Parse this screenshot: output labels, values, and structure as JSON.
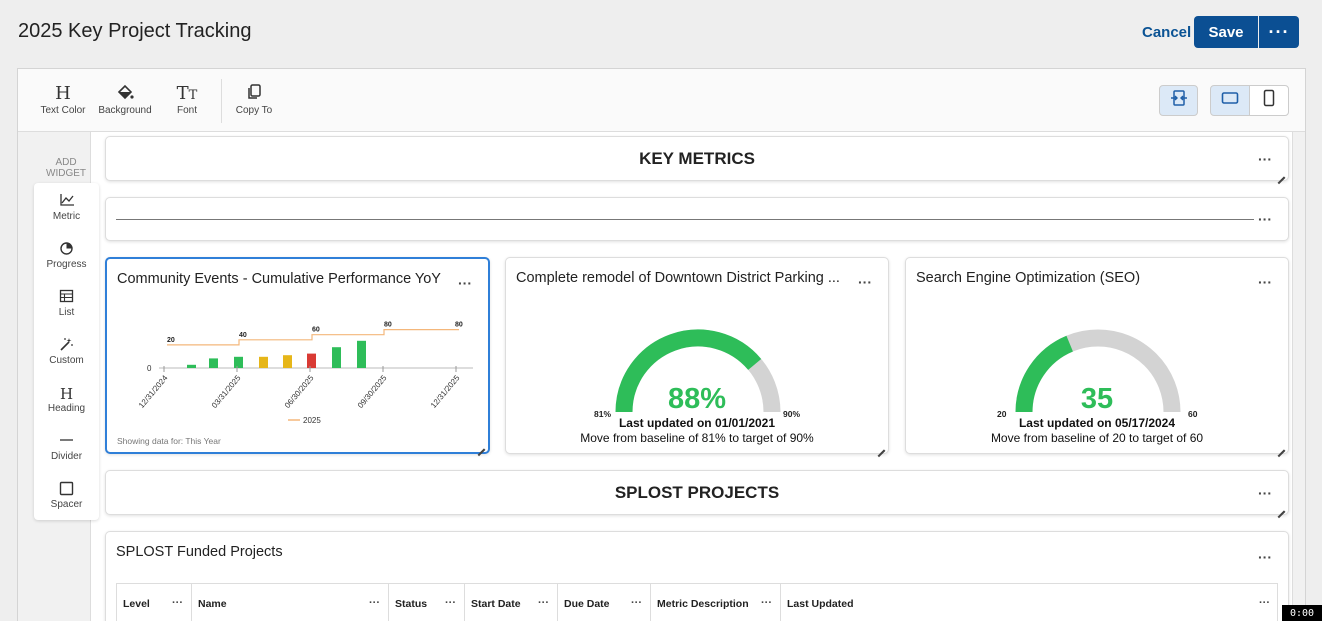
{
  "header": {
    "title": "2025 Key Project Tracking",
    "cancel_label": "Cancel",
    "save_label": "Save",
    "more_label": "···"
  },
  "toolbar": {
    "text_color": "Text Color",
    "background": "Background",
    "font": "Font",
    "copy_to": "Copy To"
  },
  "sidebar": {
    "title_line1": "ADD",
    "title_line2": "WIDGET",
    "items": [
      {
        "label": "Metric",
        "icon": "line-chart-icon"
      },
      {
        "label": "Progress",
        "icon": "pie-chart-icon"
      },
      {
        "label": "List",
        "icon": "table-icon"
      },
      {
        "label": "Custom",
        "icon": "magic-wand-icon"
      },
      {
        "label": "Heading",
        "icon": "heading-icon"
      },
      {
        "label": "Divider",
        "icon": "divider-icon"
      },
      {
        "label": "Spacer",
        "icon": "square-icon"
      }
    ]
  },
  "widgets": {
    "key_metrics_heading": "KEY METRICS",
    "splost_heading": "SPLOST PROJECTS",
    "community": {
      "title": "Community Events - Cumulative Performance YoY",
      "footer": "Showing data for: This Year"
    },
    "parking": {
      "title": "Complete remodel of Downtown District Parking ...",
      "value": "88%",
      "updated": "Last updated on 01/01/2021",
      "desc": "Move from baseline of 81% to target of 90%",
      "min_label": "81%",
      "max_label": "90%",
      "fraction": 0.7778
    },
    "seo": {
      "title": "Search Engine Optimization (SEO)",
      "value": "35",
      "updated": "Last updated on 05/17/2024",
      "desc": "Move from baseline of 20 to target of 60",
      "min_label": "20",
      "max_label": "60",
      "fraction": 0.375
    },
    "splost_table": {
      "title": "SPLOST Funded Projects",
      "columns": [
        "Level",
        "Name",
        "Status",
        "Start Date",
        "Due Date",
        "Metric Description",
        "Last Updated"
      ]
    }
  },
  "chart_data": {
    "type": "bar",
    "x_ticks": [
      "12/31/2024",
      "03/31/2025",
      "06/30/2025",
      "09/30/2025",
      "12/31/2025"
    ],
    "y_tick_labels": [
      "0"
    ],
    "bars": [
      {
        "color": "#2ebd59",
        "value": 2
      },
      {
        "color": "#2ebd59",
        "value": 6
      },
      {
        "color": "#2ebd59",
        "value": 7
      },
      {
        "color": "#e6b619",
        "value": 7
      },
      {
        "color": "#e6b619",
        "value": 8
      },
      {
        "color": "#d93a34",
        "value": 9
      },
      {
        "color": "#2ebd59",
        "value": 13
      },
      {
        "color": "#2ebd59",
        "value": 17
      }
    ],
    "target_series": {
      "name": "2025",
      "color": "#f4b77b",
      "steps": [
        {
          "label": "20",
          "value": 20
        },
        {
          "label": "40",
          "value": 40
        },
        {
          "label": "60",
          "value": 60
        },
        {
          "label": "80",
          "value": 80
        },
        {
          "label": "80",
          "value": 80
        }
      ]
    },
    "legend": "2025"
  },
  "colors": {
    "accent": "#0b4f93",
    "selection": "#2f7fd8",
    "gauge_fill": "#2ebd59",
    "gauge_track": "#d3d3d3"
  },
  "timer": "0:00"
}
